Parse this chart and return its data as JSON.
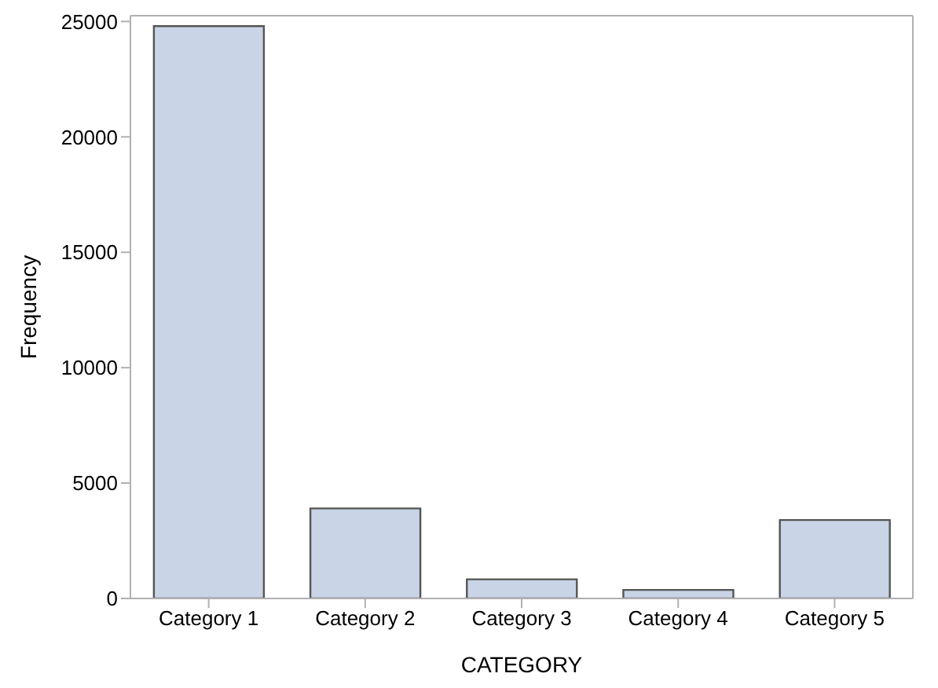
{
  "chart_data": {
    "type": "bar",
    "xlabel": "CATEGORY",
    "ylabel": "Frequency",
    "categories": [
      "Category 1",
      "Category 2",
      "Category 3",
      "Category 4",
      "Category 5"
    ],
    "values": [
      24800,
      3900,
      830,
      370,
      3400
    ],
    "color": "#c9d5e6",
    "ylim": [
      0,
      25250
    ],
    "yticks": [
      0,
      5000,
      10000,
      15000,
      20000,
      25000
    ],
    "grid": false
  }
}
